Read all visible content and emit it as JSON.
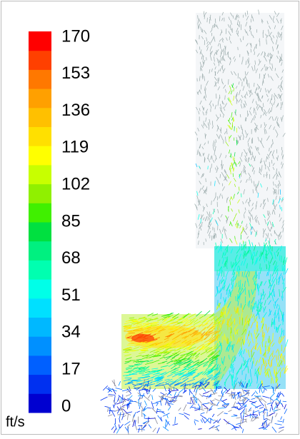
{
  "chart_data": {
    "type": "colorbar",
    "unit": "ft/s",
    "range": [
      0,
      170
    ],
    "ticks": [
      0,
      17,
      34,
      51,
      68,
      85,
      102,
      119,
      136,
      153,
      170
    ],
    "colors": [
      "#0000d0",
      "#0030f0",
      "#0060ff",
      "#0090ff",
      "#00b8ff",
      "#00e0ff",
      "#00ffe8",
      "#00ffb0",
      "#00f080",
      "#00e040",
      "#40f000",
      "#90f000",
      "#c8ff00",
      "#ffff00",
      "#ffe000",
      "#ffc000",
      "#ffa000",
      "#ff7800",
      "#ff4000",
      "#ff0000"
    ]
  }
}
